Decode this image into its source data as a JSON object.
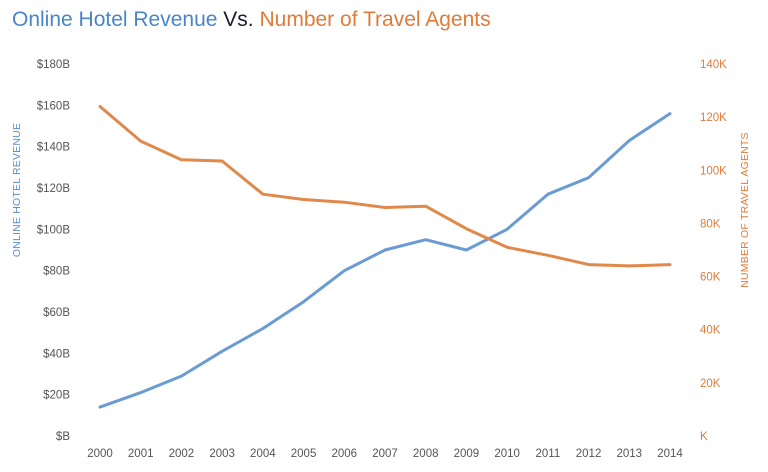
{
  "title": {
    "part1": "Online Hotel Revenue",
    "part2": " Vs. ",
    "part3": "Number of Travel Agents"
  },
  "colors": {
    "revenue": "#6a9bd2",
    "agents": "#e0894a",
    "revenue_text": "#5b8fd0",
    "agents_text": "#e07b39",
    "axis_text": "#555555"
  },
  "chart_data": {
    "type": "line",
    "x": [
      "2000",
      "2001",
      "2002",
      "2003",
      "2004",
      "2005",
      "2006",
      "2007",
      "2008",
      "2009",
      "2010",
      "2011",
      "2012",
      "2013",
      "2014"
    ],
    "series": [
      {
        "name": "Online Hotel Revenue",
        "axis": "left",
        "values": [
          14,
          21,
          29,
          41,
          52,
          65,
          80,
          90,
          95,
          90,
          100,
          117,
          125,
          143,
          156
        ]
      },
      {
        "name": "Number of Travel Agents",
        "axis": "right",
        "values": [
          124,
          111,
          104,
          103.5,
          91,
          89,
          88,
          86,
          86.5,
          78,
          71,
          68,
          64.5,
          64,
          64.5
        ]
      }
    ],
    "ylabel_left": "ONLINE HOTEL REVENUE",
    "ylabel_right": "NUMBER OF TRAVEL AGENTS",
    "ylim_left": [
      0,
      180
    ],
    "ylim_right": [
      0,
      140
    ],
    "yticks_left": [
      "$B",
      "$20B",
      "$40B",
      "$60B",
      "$80B",
      "$100B",
      "$120B",
      "$140B",
      "$160B",
      "$180B"
    ],
    "yticks_right": [
      "K",
      "20K",
      "40K",
      "60K",
      "80K",
      "100K",
      "120K",
      "140K"
    ],
    "grid": false,
    "legend": "none"
  }
}
